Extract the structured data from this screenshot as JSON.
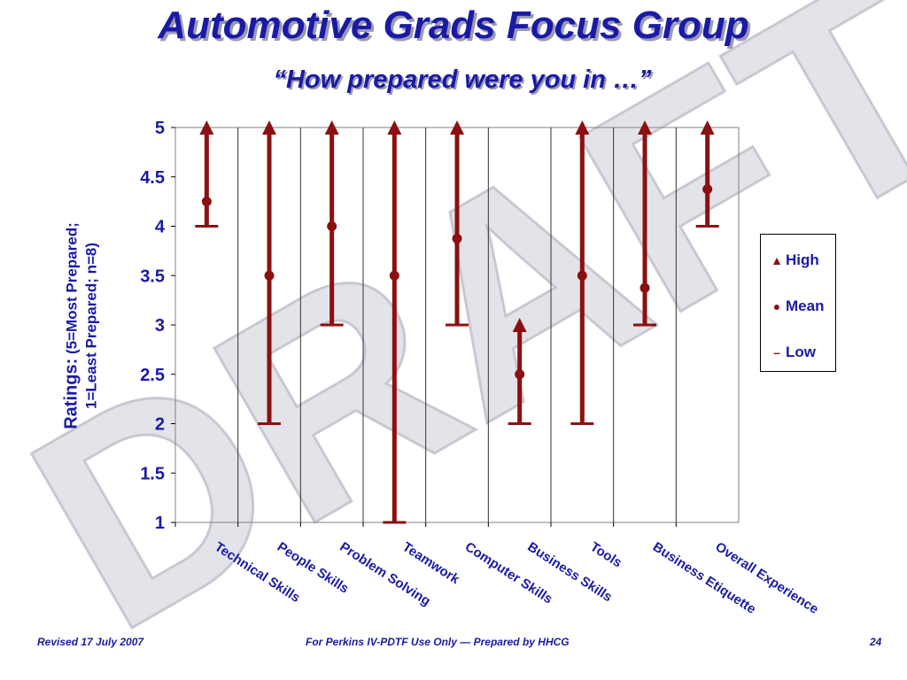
{
  "slide": {
    "title": "Automotive Grads Focus Group",
    "subtitle": "“How prepared were you in …”",
    "watermark": "DRAFT",
    "footer_left": "Revised 17 July 2007",
    "footer_center": "For Perkins IV-PDTF Use Only — Prepared by HHCG",
    "footer_right": "24"
  },
  "colors": {
    "title": "#1a1aa6",
    "series": "#8b1010",
    "watermark": "#e3e3ea"
  },
  "chart_data": {
    "type": "scatter",
    "ylabel_main": "Ratings:",
    "ylabel_rest": " (5=Most Prepared;",
    "ylabel_line2": "1=Least Prepared; n=8)",
    "ylim": [
      1,
      5
    ],
    "yticks": [
      "1",
      "1.5",
      "2",
      "2.5",
      "3",
      "3.5",
      "4",
      "4.5",
      "5"
    ],
    "grid": "vertical",
    "legend_position": "right",
    "categories": [
      "Technical Skills",
      "People Skills",
      "Problem Solving",
      "Teamwork",
      "Computer Skills",
      "Business Skills",
      "Tools",
      "Business Etiquette",
      "Overall Experience"
    ],
    "series": [
      {
        "name": "High",
        "values": [
          5,
          5,
          5,
          5,
          5,
          3,
          5,
          5,
          5
        ]
      },
      {
        "name": "Mean",
        "values": [
          4.25,
          3.5,
          4.0,
          3.5,
          3.875,
          2.5,
          3.5,
          3.375,
          4.375
        ]
      },
      {
        "name": "Low",
        "values": [
          4,
          2,
          3,
          1,
          3,
          2,
          2,
          3,
          4
        ]
      }
    ]
  }
}
